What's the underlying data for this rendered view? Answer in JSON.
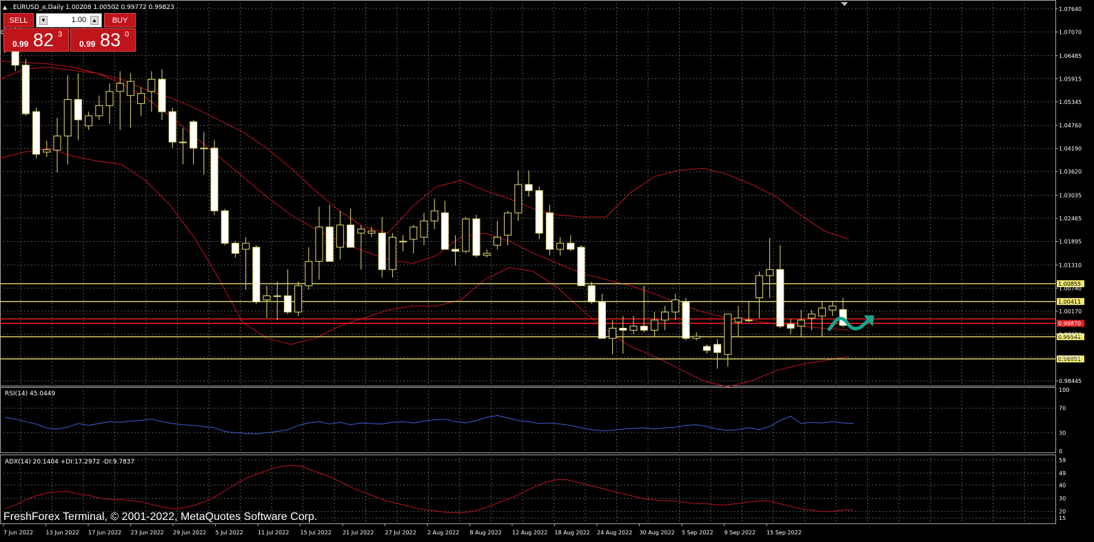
{
  "symbol_header": "EURUSD_e,Daily  1.00208 1.00502 0.99772 0.99823",
  "trade_panel": {
    "sell_label": "SELL",
    "buy_label": "BUY",
    "lot_value": "1.00",
    "sell_price": {
      "small": "0.99",
      "big": "82",
      "sup": "3"
    },
    "buy_price": {
      "small": "0.99",
      "big": "83",
      "sup": "0"
    }
  },
  "watermark": "FreshForex Terminal, © 2001-2022, MetaQuotes Software Corp.",
  "colors": {
    "background": "#000000",
    "grid": "#5a5a5a",
    "candle_bull": "#000000",
    "candle_bear": "#ffffff",
    "candle_wick": "#e8e070",
    "bands": "#c0141b",
    "support": "#e8e070",
    "resistance": "#ff2020",
    "rsi": "#3b63d6",
    "adx": "#c0141b",
    "arrow": "#1aa58c"
  },
  "chart_data": [
    {
      "type": "candlestick",
      "title": "EURUSD_e,Daily  1.00208 1.00502 0.99772 0.99823",
      "x_ticks": [
        "7 Jun 2022",
        "13 Jun 2022",
        "17 Jun 2022",
        "23 Jun 2022",
        "29 Jun 2022",
        "5 Jul 2022",
        "11 Jul 2022",
        "15 Jul 2022",
        "21 Jul 2022",
        "27 Jul 2022",
        "2 Aug 2022",
        "8 Aug 2022",
        "12 Aug 2022",
        "18 Aug 2022",
        "24 Aug 2022",
        "30 Aug 2022",
        "5 Sep 2022",
        "9 Sep 2022",
        "15 Sep 2022"
      ],
      "y_ticks": [
        "1.07640",
        "1.07070",
        "1.06485",
        "1.05915",
        "1.05345",
        "1.04760",
        "1.04190",
        "1.03620",
        "1.03035",
        "1.02465",
        "1.01895",
        "1.01310",
        "1.00740",
        "1.00170",
        "0.99602",
        "0.99030",
        "0.98445"
      ],
      "ylim": [
        0.9833,
        1.0786
      ],
      "candles": [
        {
          "o": 1.0703,
          "h": 1.0749,
          "l": 1.0655,
          "c": 1.071
        },
        {
          "o": 1.069,
          "h": 1.074,
          "l": 1.061,
          "c": 1.0625
        },
        {
          "o": 1.0625,
          "h": 1.064,
          "l": 1.05,
          "c": 1.0505
        },
        {
          "o": 1.051,
          "h": 1.052,
          "l": 1.0395,
          "c": 1.0405
        },
        {
          "o": 1.041,
          "h": 1.0438,
          "l": 1.0398,
          "c": 1.0416
        },
        {
          "o": 1.0415,
          "h": 1.0495,
          "l": 1.036,
          "c": 1.045
        },
        {
          "o": 1.045,
          "h": 1.06,
          "l": 1.038,
          "c": 1.054
        },
        {
          "o": 1.054,
          "h": 1.0605,
          "l": 1.044,
          "c": 1.049
        },
        {
          "o": 1.0475,
          "h": 1.051,
          "l": 1.0465,
          "c": 1.05
        },
        {
          "o": 1.05,
          "h": 1.055,
          "l": 1.049,
          "c": 1.0525
        },
        {
          "o": 1.0525,
          "h": 1.058,
          "l": 1.048,
          "c": 1.056
        },
        {
          "o": 1.056,
          "h": 1.061,
          "l": 1.0465,
          "c": 1.058
        },
        {
          "o": 1.055,
          "h": 1.0605,
          "l": 1.047,
          "c": 1.0585
        },
        {
          "o": 1.053,
          "h": 1.057,
          "l": 1.05,
          "c": 1.0555
        },
        {
          "o": 1.056,
          "h": 1.061,
          "l": 1.051,
          "c": 1.059
        },
        {
          "o": 1.059,
          "h": 1.0615,
          "l": 1.049,
          "c": 1.051
        },
        {
          "o": 1.051,
          "h": 1.052,
          "l": 1.042,
          "c": 1.0435
        },
        {
          "o": 1.0435,
          "h": 1.047,
          "l": 1.038,
          "c": 1.0435
        },
        {
          "o": 1.0485,
          "h": 1.049,
          "l": 1.038,
          "c": 1.042
        },
        {
          "o": 1.042,
          "h": 1.046,
          "l": 1.0355,
          "c": 1.042
        },
        {
          "o": 1.042,
          "h": 1.044,
          "l": 1.0255,
          "c": 1.0265
        },
        {
          "o": 1.0265,
          "h": 1.027,
          "l": 1.018,
          "c": 1.0185
        },
        {
          "o": 1.0185,
          "h": 1.019,
          "l": 1.015,
          "c": 1.016
        },
        {
          "o": 1.017,
          "h": 1.02,
          "l": 1.007,
          "c": 1.0185
        },
        {
          "o": 1.0175,
          "h": 1.018,
          "l": 1.0035,
          "c": 1.004
        },
        {
          "o": 1.0045,
          "h": 1.008,
          "l": 1.0,
          "c": 1.0055
        },
        {
          "o": 1.0055,
          "h": 1.009,
          "l": 0.9995,
          "c": 1.0055
        },
        {
          "o": 1.0055,
          "h": 1.012,
          "l": 1.001,
          "c": 1.0015
        },
        {
          "o": 1.0015,
          "h": 1.009,
          "l": 1.0005,
          "c": 1.008
        },
        {
          "o": 1.008,
          "h": 1.0175,
          "l": 1.007,
          "c": 1.014
        },
        {
          "o": 1.014,
          "h": 1.0275,
          "l": 1.0095,
          "c": 1.0225
        },
        {
          "o": 1.0225,
          "h": 1.028,
          "l": 1.014,
          "c": 1.014
        },
        {
          "o": 1.0175,
          "h": 1.0265,
          "l": 1.0145,
          "c": 1.023
        },
        {
          "o": 1.023,
          "h": 1.027,
          "l": 1.0175,
          "c": 1.0175
        },
        {
          "o": 1.021,
          "h": 1.023,
          "l": 1.012,
          "c": 1.022
        },
        {
          "o": 1.021,
          "h": 1.0225,
          "l": 1.02,
          "c": 1.0215
        },
        {
          "o": 1.021,
          "h": 1.025,
          "l": 1.01,
          "c": 1.012
        },
        {
          "o": 1.012,
          "h": 1.021,
          "l": 1.01,
          "c": 1.02
        },
        {
          "o": 1.019,
          "h": 1.0205,
          "l": 1.0165,
          "c": 1.019
        },
        {
          "o": 1.0195,
          "h": 1.023,
          "l": 1.016,
          "c": 1.0225
        },
        {
          "o": 1.02,
          "h": 1.026,
          "l": 1.018,
          "c": 1.024
        },
        {
          "o": 1.024,
          "h": 1.0295,
          "l": 1.022,
          "c": 1.0265
        },
        {
          "o": 1.026,
          "h": 1.029,
          "l": 1.017,
          "c": 1.017
        },
        {
          "o": 1.017,
          "h": 1.0205,
          "l": 1.013,
          "c": 1.0165
        },
        {
          "o": 1.0165,
          "h": 1.025,
          "l": 1.016,
          "c": 1.0245
        },
        {
          "o": 1.0245,
          "h": 1.0255,
          "l": 1.015,
          "c": 1.0155
        },
        {
          "o": 1.0155,
          "h": 1.017,
          "l": 1.015,
          "c": 1.016
        },
        {
          "o": 1.018,
          "h": 1.024,
          "l": 1.017,
          "c": 1.02
        },
        {
          "o": 1.0205,
          "h": 1.0265,
          "l": 1.018,
          "c": 1.026
        },
        {
          "o": 1.026,
          "h": 1.0365,
          "l": 1.024,
          "c": 1.033
        },
        {
          "o": 1.033,
          "h": 1.0365,
          "l": 1.03,
          "c": 1.0315
        },
        {
          "o": 1.0315,
          "h": 1.0325,
          "l": 1.0195,
          "c": 1.021
        },
        {
          "o": 1.026,
          "h": 1.028,
          "l": 1.0155,
          "c": 1.017
        },
        {
          "o": 1.017,
          "h": 1.02,
          "l": 1.0155,
          "c": 1.0185
        },
        {
          "o": 1.0185,
          "h": 1.0205,
          "l": 1.0165,
          "c": 1.017
        },
        {
          "o": 1.0175,
          "h": 1.018,
          "l": 1.008,
          "c": 1.008
        },
        {
          "o": 1.008,
          "h": 1.009,
          "l": 1.0035,
          "c": 1.004
        },
        {
          "o": 1.004,
          "h": 1.006,
          "l": 0.995,
          "c": 0.995
        },
        {
          "o": 0.995,
          "h": 0.9995,
          "l": 0.991,
          "c": 0.9975
        },
        {
          "o": 0.9975,
          "h": 1.0005,
          "l": 0.9912,
          "c": 0.997
        },
        {
          "o": 0.997,
          "h": 1.0005,
          "l": 0.996,
          "c": 0.998
        },
        {
          "o": 0.998,
          "h": 1.008,
          "l": 0.9965,
          "c": 0.997
        },
        {
          "o": 0.997,
          "h": 1.0015,
          "l": 0.9955,
          "c": 0.9995
        },
        {
          "o": 0.9995,
          "h": 1.003,
          "l": 0.997,
          "c": 1.0015
        },
        {
          "o": 1.0015,
          "h": 1.006,
          "l": 0.9995,
          "c": 1.0045
        },
        {
          "o": 1.004,
          "h": 1.005,
          "l": 0.9945,
          "c": 0.995
        },
        {
          "o": 0.995,
          "h": 0.9965,
          "l": 0.9945,
          "c": 0.9955
        },
        {
          "o": 0.993,
          "h": 0.9935,
          "l": 0.9912,
          "c": 0.992
        },
        {
          "o": 0.9935,
          "h": 0.9948,
          "l": 0.9875,
          "c": 0.9915
        },
        {
          "o": 0.991,
          "h": 1.001,
          "l": 0.988,
          "c": 1.001
        },
        {
          "o": 0.999,
          "h": 1.003,
          "l": 0.9955,
          "c": 1.0
        },
        {
          "o": 0.9995,
          "h": 1.004,
          "l": 0.999,
          "c": 0.9995
        },
        {
          "o": 1.005,
          "h": 1.0115,
          "l": 1.0,
          "c": 1.0105
        },
        {
          "o": 1.0105,
          "h": 1.0198,
          "l": 1.005,
          "c": 1.012
        },
        {
          "o": 1.012,
          "h": 1.018,
          "l": 0.9975,
          "c": 0.998
        },
        {
          "o": 0.9985,
          "h": 0.9998,
          "l": 0.996,
          "c": 0.9975
        },
        {
          "o": 0.998,
          "h": 1.002,
          "l": 0.9955,
          "c": 0.9995
        },
        {
          "o": 1.0,
          "h": 1.002,
          "l": 0.997,
          "c": 1.001
        },
        {
          "o": 1.0005,
          "h": 1.004,
          "l": 0.9955,
          "c": 1.0025
        },
        {
          "o": 1.002,
          "h": 1.004,
          "l": 1.0005,
          "c": 1.003
        },
        {
          "o": 1.0021,
          "h": 1.005,
          "l": 0.9977,
          "c": 0.9982
        }
      ],
      "bands": {
        "upper": [
          1.059,
          1.0615,
          1.062,
          1.0612,
          1.0605,
          1.059,
          1.0565,
          1.0545,
          1.052,
          1.049,
          1.046,
          1.042,
          1.037,
          1.0315,
          1.0265,
          1.0225,
          1.021,
          1.0275,
          1.0325,
          1.034,
          1.0315,
          1.0295,
          1.027,
          1.0255,
          1.025,
          1.025,
          1.031,
          1.035,
          1.0365,
          1.037,
          1.0355,
          1.033,
          1.03,
          1.0255,
          1.0215,
          1.0195
        ],
        "middle": [
          1.0635,
          1.0632,
          1.0628,
          1.062,
          1.0605,
          1.058,
          1.0545,
          1.05,
          1.045,
          1.04,
          1.035,
          1.03,
          1.0255,
          1.022,
          1.019,
          1.0165,
          1.0145,
          1.0135,
          1.0155,
          1.02,
          1.021,
          1.019,
          1.016,
          1.0135,
          1.011,
          1.0095,
          1.008,
          1.006,
          1.0035,
          1.0015,
          1.0,
          0.9995,
          0.9985,
          0.998,
          0.9975,
          0.997
        ],
        "lower": [
          1.0395,
          1.041,
          1.042,
          1.04,
          1.0388,
          1.038,
          1.034,
          1.028,
          1.02,
          1.01,
          0.999,
          0.995,
          0.9935,
          0.995,
          0.998,
          1.0,
          1.002,
          1.003,
          1.003,
          1.0045,
          1.0095,
          1.0125,
          1.0115,
          1.0075,
          1.002,
          0.997,
          0.993,
          0.9905,
          0.9875,
          0.9845,
          0.983,
          0.9845,
          0.987,
          0.9885,
          0.9895,
          0.9905
        ]
      },
      "horizontal_levels": [
        {
          "price": 1.0085,
          "label": "1.00855",
          "color": "yellow"
        },
        {
          "price": 1.0041,
          "label": "1.00411",
          "color": "yellow"
        },
        {
          "price": 0.9998,
          "label": "",
          "color": "red"
        },
        {
          "price": 0.9987,
          "label": "0.99870",
          "color": "red"
        },
        {
          "price": 0.9954,
          "label": "0.99541",
          "color": "yellow"
        },
        {
          "price": 0.9899,
          "label": "0.98991",
          "color": "yellow"
        }
      ]
    },
    {
      "type": "line",
      "title": "RSI(14) 45.0449",
      "y_ticks": [
        "100",
        "70",
        "30",
        "0"
      ],
      "ylim": [
        0,
        100
      ],
      "values": [
        55,
        52,
        48,
        44,
        38,
        36,
        39,
        45,
        42,
        45,
        48,
        47,
        49,
        50,
        52,
        48,
        45,
        43,
        42,
        40,
        38,
        32,
        30,
        29,
        28,
        30,
        32,
        35,
        42,
        46,
        48,
        44,
        47,
        43,
        46,
        45,
        44,
        47,
        48,
        46,
        49,
        51,
        52,
        48,
        46,
        50,
        55,
        58,
        54,
        50,
        48,
        45,
        46,
        44,
        42,
        38,
        35,
        33,
        34,
        36,
        37,
        38,
        36,
        38,
        39,
        42,
        43,
        40,
        36,
        34,
        35,
        38,
        35,
        40,
        50,
        57,
        45,
        47,
        46,
        48,
        46,
        45
      ]
    },
    {
      "type": "line",
      "title": "ADX(14) 20.1404 +DI:17.2972 -DI:9.7837",
      "y_ticks": [
        "59",
        "49",
        "40",
        "30",
        "20",
        "15"
      ],
      "ylim": [
        12,
        61
      ],
      "values": [
        22,
        25,
        29,
        32,
        34,
        35,
        35,
        33,
        32,
        30,
        29,
        29,
        28,
        27,
        25,
        23,
        22,
        23,
        25,
        28,
        32,
        37,
        42,
        46,
        49,
        52,
        54,
        55,
        54,
        51,
        48,
        45,
        41,
        37,
        34,
        31,
        28,
        26,
        24,
        22,
        21,
        20,
        19,
        19,
        20,
        22,
        25,
        28,
        31,
        35,
        39,
        42,
        44,
        44,
        42,
        40,
        38,
        36,
        34,
        32,
        30,
        29,
        28,
        28,
        27,
        26,
        26,
        25,
        25,
        26,
        27,
        28,
        28,
        26,
        24,
        22,
        21,
        20,
        20,
        21,
        21
      ]
    }
  ]
}
